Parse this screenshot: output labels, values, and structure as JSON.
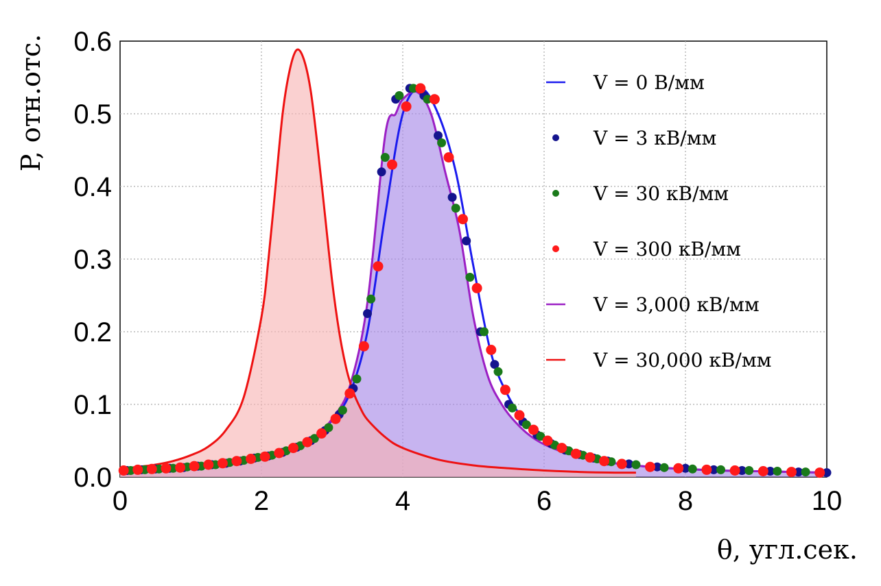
{
  "chart_data": {
    "type": "line",
    "xlabel": "θ, угл.сек.",
    "ylabel": "P, отн.отс.",
    "xlim": [
      0,
      10
    ],
    "ylim": [
      0,
      0.6
    ],
    "xticks": [
      "0",
      "2",
      "4",
      "6",
      "8",
      "10"
    ],
    "yticks": [
      "0.0",
      "0.1",
      "0.2",
      "0.3",
      "0.4",
      "0.5",
      "0.6"
    ],
    "grid": true,
    "legend_position": "right",
    "series": [
      {
        "name": "V = 0 В/мм",
        "kind": "line",
        "color": "#1a1aee",
        "x": [
          0.0,
          0.25,
          0.5,
          0.75,
          1.0,
          1.25,
          1.5,
          1.75,
          2.0,
          2.25,
          2.5,
          2.75,
          3.0,
          3.25,
          3.5,
          3.75,
          4.0,
          4.25,
          4.5,
          4.75,
          5.0,
          5.25,
          5.5,
          5.75,
          6.0,
          6.25,
          6.5,
          6.75,
          7.0,
          7.5,
          8.0,
          8.5,
          9.0,
          9.5,
          10.0
        ],
        "y": [
          0.009,
          0.01,
          0.011,
          0.012,
          0.014,
          0.016,
          0.018,
          0.021,
          0.025,
          0.031,
          0.04,
          0.055,
          0.078,
          0.115,
          0.2,
          0.36,
          0.5,
          0.535,
          0.5,
          0.42,
          0.29,
          0.17,
          0.11,
          0.075,
          0.052,
          0.039,
          0.03,
          0.024,
          0.019,
          0.014,
          0.011,
          0.009,
          0.008,
          0.007,
          0.006
        ]
      },
      {
        "name": "V = 3 кВ/мм",
        "kind": "points",
        "color": "#14148e",
        "x": [
          0.1,
          0.3,
          0.5,
          0.7,
          0.9,
          1.1,
          1.3,
          1.5,
          1.7,
          1.9,
          2.1,
          2.3,
          2.5,
          2.7,
          2.9,
          3.1,
          3.3,
          3.5,
          3.7,
          3.9,
          4.1,
          4.3,
          4.5,
          4.7,
          4.9,
          5.1,
          5.3,
          5.5,
          5.7,
          5.9,
          6.1,
          6.3,
          6.5,
          6.7,
          6.9,
          7.2,
          7.6,
          8.0,
          8.4,
          8.8,
          9.2,
          9.6,
          10.0
        ],
        "y": [
          0.009,
          0.01,
          0.011,
          0.012,
          0.013,
          0.015,
          0.017,
          0.019,
          0.022,
          0.026,
          0.029,
          0.034,
          0.041,
          0.05,
          0.064,
          0.086,
          0.122,
          0.225,
          0.42,
          0.52,
          0.535,
          0.525,
          0.47,
          0.385,
          0.325,
          0.2,
          0.155,
          0.1,
          0.076,
          0.058,
          0.046,
          0.037,
          0.031,
          0.026,
          0.022,
          0.018,
          0.014,
          0.012,
          0.01,
          0.009,
          0.008,
          0.007,
          0.006
        ]
      },
      {
        "name": "V = 30 кВ/мм",
        "kind": "points",
        "color": "#1a7a1a",
        "x": [
          0.15,
          0.35,
          0.55,
          0.75,
          0.95,
          1.15,
          1.35,
          1.55,
          1.75,
          1.95,
          2.15,
          2.35,
          2.55,
          2.75,
          2.95,
          3.15,
          3.35,
          3.55,
          3.75,
          3.95,
          4.15,
          4.35,
          4.55,
          4.75,
          4.95,
          5.15,
          5.35,
          5.55,
          5.75,
          5.95,
          6.15,
          6.35,
          6.55,
          6.75,
          6.95,
          7.3,
          7.7,
          8.1,
          8.5,
          8.9,
          9.3,
          9.7
        ],
        "y": [
          0.009,
          0.01,
          0.011,
          0.012,
          0.014,
          0.015,
          0.017,
          0.02,
          0.023,
          0.027,
          0.03,
          0.036,
          0.043,
          0.053,
          0.068,
          0.092,
          0.135,
          0.245,
          0.44,
          0.525,
          0.535,
          0.52,
          0.46,
          0.37,
          0.275,
          0.2,
          0.145,
          0.095,
          0.072,
          0.056,
          0.044,
          0.036,
          0.03,
          0.025,
          0.021,
          0.017,
          0.013,
          0.011,
          0.01,
          0.009,
          0.008,
          0.007
        ]
      },
      {
        "name": "V = 300 кВ/мм",
        "kind": "points",
        "color": "#ff1a1a",
        "x": [
          0.05,
          0.25,
          0.45,
          0.65,
          0.85,
          1.05,
          1.25,
          1.45,
          1.65,
          1.85,
          2.05,
          2.25,
          2.45,
          2.65,
          2.85,
          3.05,
          3.25,
          3.45,
          3.65,
          3.85,
          4.05,
          4.25,
          4.45,
          4.65,
          4.85,
          5.05,
          5.25,
          5.45,
          5.65,
          5.85,
          6.05,
          6.25,
          6.45,
          6.65,
          6.85,
          7.1,
          7.5,
          7.9,
          8.3,
          8.7,
          9.1,
          9.5,
          9.9
        ],
        "y": [
          0.009,
          0.01,
          0.011,
          0.012,
          0.013,
          0.015,
          0.017,
          0.019,
          0.022,
          0.025,
          0.028,
          0.033,
          0.04,
          0.048,
          0.06,
          0.08,
          0.115,
          0.18,
          0.29,
          0.43,
          0.51,
          0.535,
          0.52,
          0.44,
          0.355,
          0.26,
          0.175,
          0.12,
          0.085,
          0.065,
          0.05,
          0.04,
          0.032,
          0.027,
          0.022,
          0.018,
          0.014,
          0.012,
          0.01,
          0.009,
          0.008,
          0.007,
          0.006
        ]
      },
      {
        "name": "V = 3,000 кВ/мм",
        "kind": "line",
        "color": "#9b1fc4",
        "fill": "#a586e6",
        "x": [
          0.0,
          0.25,
          0.5,
          0.75,
          1.0,
          1.25,
          1.5,
          1.75,
          2.0,
          2.25,
          2.5,
          2.75,
          3.0,
          3.25,
          3.5,
          3.75,
          3.9,
          4.0,
          4.2,
          4.4,
          4.6,
          4.8,
          5.0,
          5.2,
          5.4,
          5.6,
          5.8,
          6.0,
          6.25,
          6.5,
          6.75,
          7.0,
          7.5,
          8.0,
          8.5,
          9.0,
          9.5,
          10.0
        ],
        "y": [
          0.009,
          0.01,
          0.011,
          0.012,
          0.014,
          0.016,
          0.018,
          0.021,
          0.025,
          0.031,
          0.04,
          0.055,
          0.08,
          0.125,
          0.24,
          0.47,
          0.5,
          0.52,
          0.53,
          0.5,
          0.42,
          0.34,
          0.22,
          0.14,
          0.1,
          0.075,
          0.057,
          0.045,
          0.035,
          0.028,
          0.023,
          0.019,
          0.014,
          0.011,
          0.009,
          0.008,
          0.007,
          0.006
        ]
      },
      {
        "name": "V = 30,000 кВ/мм",
        "kind": "line",
        "color": "#ee1111",
        "fill": "#f7b3b3",
        "x": [
          0.0,
          0.25,
          0.5,
          0.75,
          1.0,
          1.25,
          1.5,
          1.75,
          2.0,
          2.1,
          2.2,
          2.3,
          2.4,
          2.5,
          2.6,
          2.7,
          2.8,
          2.9,
          3.0,
          3.1,
          3.2,
          3.3,
          3.4,
          3.5,
          3.75,
          4.0,
          4.5,
          5.0,
          5.5,
          6.0,
          6.5,
          7.0,
          7.3
        ],
        "y": [
          0.012,
          0.014,
          0.017,
          0.022,
          0.03,
          0.042,
          0.065,
          0.11,
          0.22,
          0.3,
          0.4,
          0.5,
          0.56,
          0.588,
          0.575,
          0.53,
          0.45,
          0.36,
          0.27,
          0.2,
          0.15,
          0.117,
          0.095,
          0.079,
          0.055,
          0.04,
          0.024,
          0.016,
          0.012,
          0.009,
          0.007,
          0.006,
          0.006
        ]
      }
    ]
  }
}
